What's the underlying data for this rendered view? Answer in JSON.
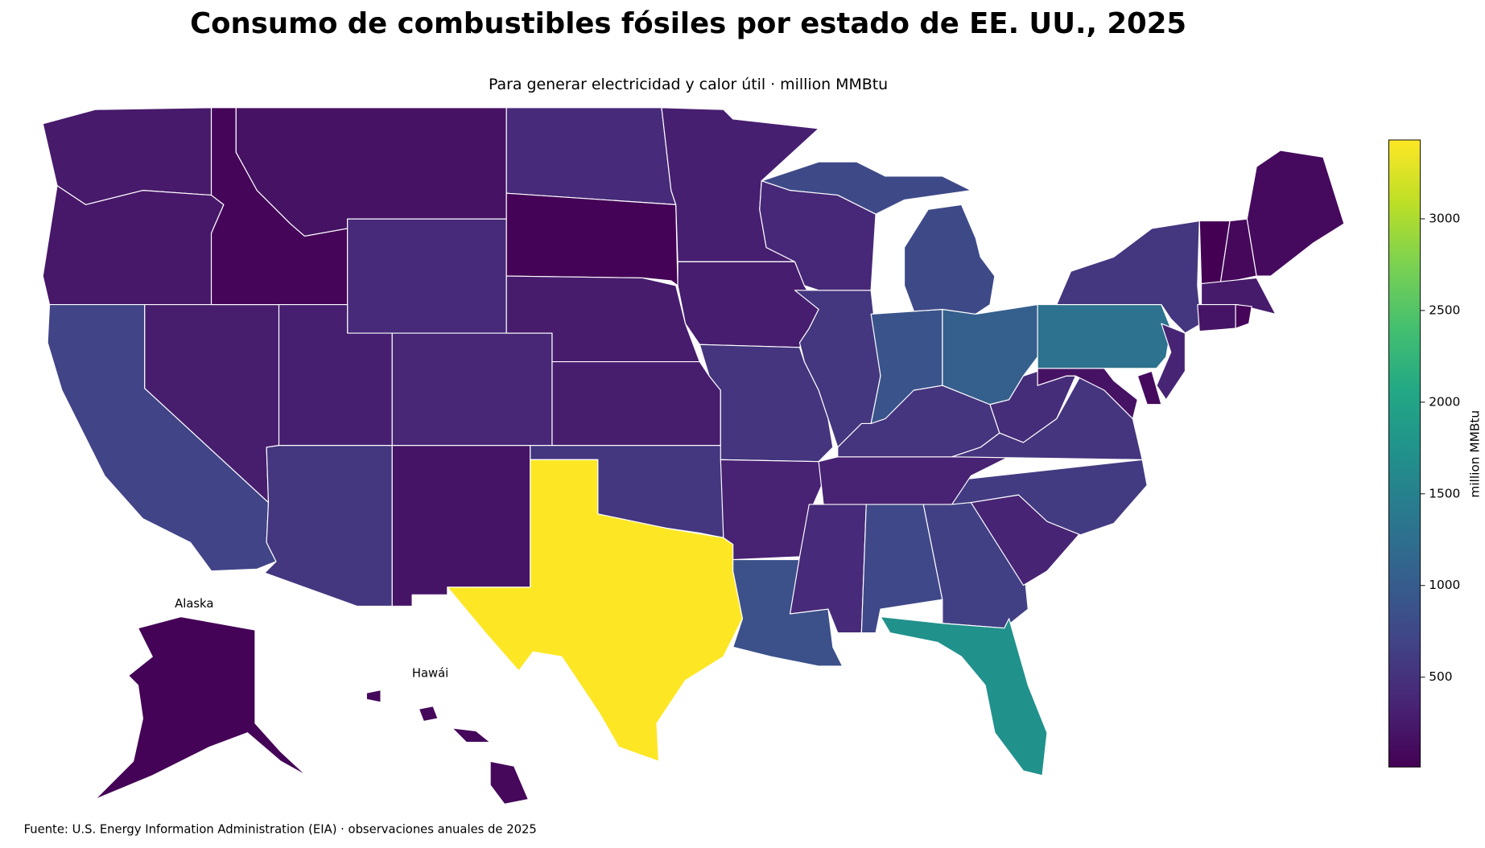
{
  "chart_data": {
    "type": "choropleth",
    "title": "Consumo de combustibles fósiles por estado de EE. UU., 2025",
    "subtitle": "Para generar electricidad y calor útil · million MMBtu",
    "source": "Fuente: U.S. Energy Information Administration (EIA) · observaciones anuales de 2025",
    "inset_labels": [
      "Alaska",
      "Hawái"
    ],
    "colormap": "viridis",
    "colorbar_label": "million MMBtu",
    "clim": [
      10,
      3430
    ],
    "colorbar_ticks": [
      500,
      1000,
      1500,
      2000,
      2500,
      3000
    ],
    "values": [
      250,
      230,
      700,
      280,
      60,
      180,
      420,
      300,
      550,
      380,
      200,
      420,
      30,
      270,
      280,
      560,
      3430,
      300,
      290,
      530,
      330,
      850,
      420,
      750,
      650,
      1720,
      350,
      600,
      330,
      520,
      550,
      900,
      1050,
      770,
      400,
      450,
      520,
      180,
      100,
      1300,
      350,
      550,
      10,
      80,
      100,
      260,
      200,
      60,
      30,
      80
    ]
  }
}
